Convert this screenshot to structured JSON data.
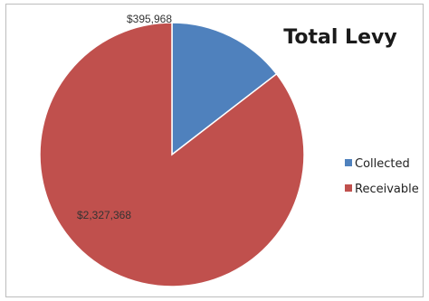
{
  "chart_data": {
    "type": "pie",
    "title": "Total Levy",
    "slices": [
      {
        "label": "Collected",
        "value": 395968,
        "value_label": "$395,968",
        "color": "#4f81bd"
      },
      {
        "label": "Receivable",
        "value": 2327368,
        "value_label": "$2,327,368",
        "color": "#c0504d"
      }
    ],
    "start_angle_deg": 0,
    "direction": "clockwise",
    "legend_position": "right",
    "slice_border_color": "#ffffff"
  }
}
